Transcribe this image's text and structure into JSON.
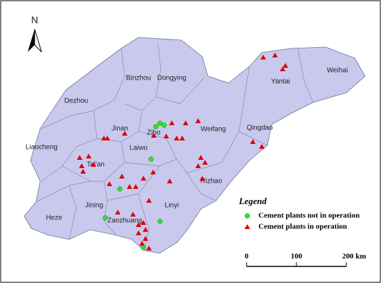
{
  "north": "N",
  "cities": [
    "Weihai",
    "Yantai",
    "Binzhou",
    "Dongying",
    "Dezhou",
    "Jinan",
    "Zibo",
    "Weifang",
    "Qingdao",
    "Liaocheng",
    "Laiwu",
    "Tai'an",
    "Rizhao",
    "Linyi",
    "Jining",
    "Heze",
    "Zaozhuang"
  ],
  "legend": {
    "title": "Legend",
    "items": [
      "Cement plants not in operation",
      "Cement plants in operation"
    ]
  },
  "scale_bar": {
    "labels": [
      "0",
      "100",
      "200 km"
    ]
  }
}
